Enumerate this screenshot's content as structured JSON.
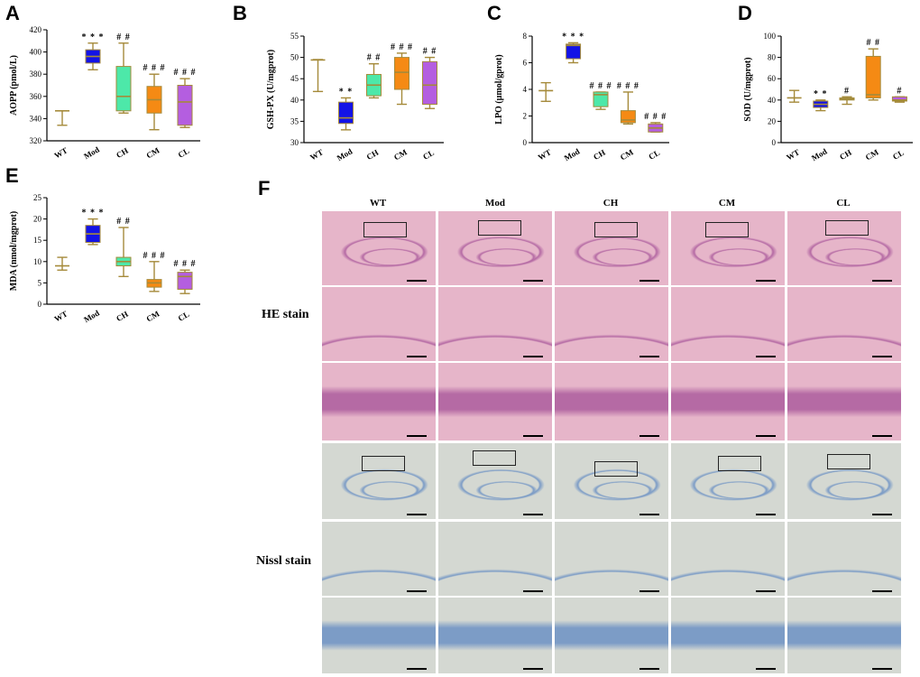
{
  "panels": {
    "A": "A",
    "B": "B",
    "C": "C",
    "D": "D",
    "E": "E",
    "F": "F"
  },
  "groups": [
    "WT",
    "Mod",
    "CH",
    "CM",
    "CL"
  ],
  "colors": {
    "WT": "#a58a3a",
    "Mod": "#1313e6",
    "CH": "#4de8a9",
    "CM": "#f58a14",
    "CL": "#b45ee0",
    "whisker": "#a58a3a",
    "he_bg": "#e6b5c9",
    "he_dark": "#b56aa4",
    "nissl_bg": "#d4d8d2",
    "nissl_dark": "#7c9cc6"
  },
  "chart_data": [
    {
      "id": "A",
      "type": "box",
      "ylabel": "AOPP (pmol/L)",
      "ylim": [
        320,
        420
      ],
      "yticks": [
        320,
        340,
        360,
        380,
        400,
        420
      ],
      "categories": [
        "WT",
        "Mod",
        "CH",
        "CM",
        "CL"
      ],
      "boxes": [
        {
          "min": 334,
          "q1": 347,
          "median": 347,
          "q3": 347,
          "max": 347
        },
        {
          "min": 384,
          "q1": 390,
          "median": 396,
          "q3": 402,
          "max": 408
        },
        {
          "min": 345,
          "q1": 347,
          "median": 360,
          "q3": 387,
          "max": 408
        },
        {
          "min": 330,
          "q1": 345,
          "median": 357,
          "q3": 369,
          "max": 380
        },
        {
          "min": 332,
          "q1": 334,
          "median": 355,
          "q3": 370,
          "max": 376
        }
      ],
      "annotations": [
        "",
        "* * *",
        "# #",
        "# # #",
        "# # #"
      ]
    },
    {
      "id": "B",
      "type": "box",
      "ylabel": "GSH-PX (U/mgprot)",
      "ylim": [
        30,
        55
      ],
      "yticks": [
        30,
        35,
        40,
        45,
        50,
        55
      ],
      "categories": [
        "WT",
        "Mod",
        "CH",
        "CM",
        "CL"
      ],
      "boxes": [
        {
          "min": 42,
          "q1": 49.3,
          "median": 49.4,
          "q3": 49.5,
          "max": 49.5
        },
        {
          "min": 33,
          "q1": 34.5,
          "median": 35.8,
          "q3": 39.5,
          "max": 40.5
        },
        {
          "min": 40.5,
          "q1": 41,
          "median": 43.5,
          "q3": 46,
          "max": 48.5
        },
        {
          "min": 39,
          "q1": 42.5,
          "median": 46.5,
          "q3": 50,
          "max": 51
        },
        {
          "min": 38,
          "q1": 39,
          "median": 43.5,
          "q3": 49,
          "max": 50
        }
      ],
      "annotations": [
        "",
        "* *",
        "# #",
        "# # #",
        "# #"
      ]
    },
    {
      "id": "C",
      "type": "box",
      "ylabel": "LPO (μmol/gprot)",
      "ylim": [
        0,
        8
      ],
      "yticks": [
        0,
        2,
        4,
        6,
        8
      ],
      "categories": [
        "WT",
        "Mod",
        "CH",
        "CM",
        "CL"
      ],
      "boxes": [
        {
          "min": 3.1,
          "q1": 3.9,
          "median": 3.9,
          "q3": 3.9,
          "max": 4.5
        },
        {
          "min": 6.0,
          "q1": 6.3,
          "median": 7.3,
          "q3": 7.4,
          "max": 7.5
        },
        {
          "min": 2.5,
          "q1": 2.7,
          "median": 3.6,
          "q3": 3.8,
          "max": 3.8
        },
        {
          "min": 1.4,
          "q1": 1.5,
          "median": 1.7,
          "q3": 2.4,
          "max": 3.8
        },
        {
          "min": 0.8,
          "q1": 0.8,
          "median": 1.1,
          "q3": 1.4,
          "max": 1.5
        }
      ],
      "annotations": [
        "",
        "* * *",
        "# # #",
        "# # #",
        "# # #"
      ]
    },
    {
      "id": "D",
      "type": "box",
      "ylabel": "SOD (U/mgprot)",
      "ylim": [
        0,
        100
      ],
      "yticks": [
        0,
        20,
        40,
        60,
        80,
        100
      ],
      "categories": [
        "WT",
        "Mod",
        "CH",
        "CM",
        "CL"
      ],
      "boxes": [
        {
          "min": 38,
          "q1": 42,
          "median": 42,
          "q3": 42,
          "max": 49
        },
        {
          "min": 30,
          "q1": 33,
          "median": 36,
          "q3": 39,
          "max": 40
        },
        {
          "min": 36,
          "q1": 40,
          "median": 41,
          "q3": 42,
          "max": 43
        },
        {
          "min": 40,
          "q1": 42,
          "median": 45,
          "q3": 81,
          "max": 88
        },
        {
          "min": 38,
          "q1": 39,
          "median": 40,
          "q3": 43,
          "max": 43
        }
      ],
      "annotations": [
        "",
        "* *",
        "#",
        "# #",
        "#"
      ]
    },
    {
      "id": "E",
      "type": "box",
      "ylabel": "MDA (nmol/mgprot)",
      "ylim": [
        0,
        25
      ],
      "yticks": [
        0,
        5,
        10,
        15,
        20,
        25
      ],
      "categories": [
        "WT",
        "Mod",
        "CH",
        "CM",
        "CL"
      ],
      "boxes": [
        {
          "min": 8,
          "q1": 9,
          "median": 9,
          "q3": 9,
          "max": 11
        },
        {
          "min": 14,
          "q1": 14.5,
          "median": 16.5,
          "q3": 18.5,
          "max": 20
        },
        {
          "min": 6.5,
          "q1": 9,
          "median": 10,
          "q3": 11,
          "max": 18
        },
        {
          "min": 3,
          "q1": 4,
          "median": 5,
          "q3": 5.8,
          "max": 10
        },
        {
          "min": 2.5,
          "q1": 3.5,
          "median": 6.5,
          "q3": 7.5,
          "max": 8
        }
      ],
      "annotations": [
        "",
        "* * *",
        "# #",
        "# # #",
        "# # #"
      ]
    }
  ],
  "micrographs": {
    "column_headers": [
      "WT",
      "Mod",
      "CH",
      "CM",
      "CL"
    ],
    "row_labels": {
      "he": "HE stain",
      "nissl": "Nissl stain"
    }
  }
}
